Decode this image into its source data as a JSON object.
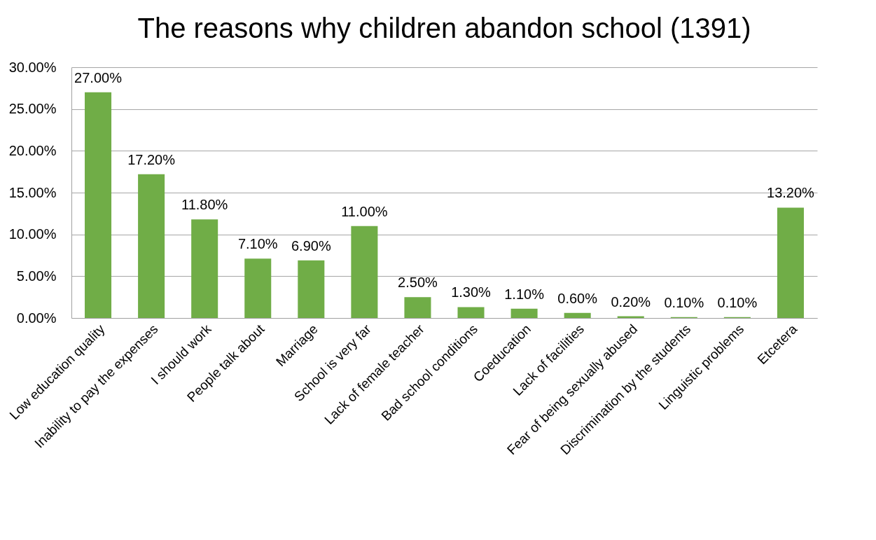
{
  "chart_data": {
    "type": "bar",
    "title": "The reasons why children abandon school (1391)",
    "categories": [
      "Low education quality",
      "Inability to pay the expenses",
      "I should work",
      "People talk about",
      "Marriage",
      "School is very far",
      "Lack of female teacher",
      "Bad school conditions",
      "Coeducation",
      "Lack of facilities",
      "Fear of being sexually abused",
      "Discrimination by the students",
      "Linguistic problems",
      "Etcetera"
    ],
    "values": [
      27.0,
      17.2,
      11.8,
      7.1,
      6.9,
      11.0,
      2.5,
      1.3,
      1.1,
      0.6,
      0.2,
      0.1,
      0.1,
      13.2
    ],
    "value_labels": [
      "27.00%",
      "17.20%",
      "11.80%",
      "7.10%",
      "6.90%",
      "11.00%",
      "2.50%",
      "1.30%",
      "1.10%",
      "0.60%",
      "0.20%",
      "0.10%",
      "0.10%",
      "13.20%"
    ],
    "color": "#70ad47",
    "ylim": [
      0,
      30
    ],
    "yticks": [
      {
        "value": 0,
        "label": "0.00%"
      },
      {
        "value": 5,
        "label": "5.00%"
      },
      {
        "value": 10,
        "label": "10.00%"
      },
      {
        "value": 15,
        "label": "15.00%"
      },
      {
        "value": 20,
        "label": "20.00%"
      },
      {
        "value": 25,
        "label": "25.00%"
      },
      {
        "value": 30,
        "label": "30.00%"
      }
    ],
    "grid": "y"
  }
}
